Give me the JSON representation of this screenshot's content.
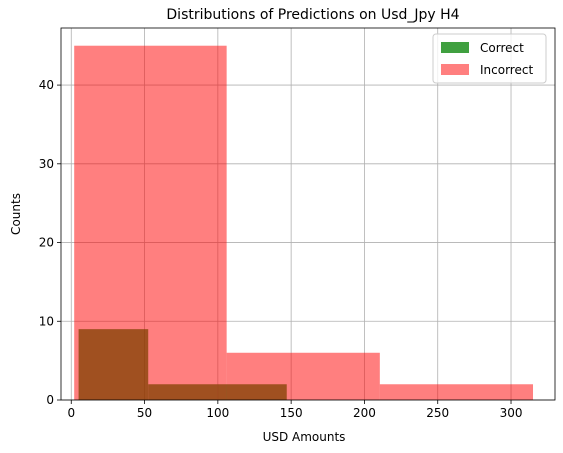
{
  "chart_data": {
    "type": "bar",
    "title": "Distributions of Predictions on Usd_Jpy H4",
    "xlabel": "USD Amounts",
    "ylabel": "Counts",
    "xlim": [
      -7,
      330
    ],
    "ylim": [
      0,
      47.25
    ],
    "xticks": [
      "0",
      "50",
      "100",
      "150",
      "200",
      "250",
      "300"
    ],
    "xtick_values": [
      0,
      50,
      100,
      150,
      200,
      250,
      300
    ],
    "yticks": [
      "0",
      "10",
      "20",
      "30",
      "40"
    ],
    "ytick_values": [
      0,
      10,
      20,
      30,
      40
    ],
    "grid": true,
    "legend_position": "top-right",
    "series": [
      {
        "name": "Correct",
        "color": "#008000",
        "opacity": 0.75,
        "bins": [
          {
            "x0": 5,
            "x1": 52.5,
            "count": 9
          },
          {
            "x0": 52.5,
            "x1": 100,
            "count": 2
          },
          {
            "x0": 100,
            "x1": 147,
            "count": 2
          }
        ]
      },
      {
        "name": "Incorrect",
        "color": "#ff0000",
        "opacity": 0.5,
        "bins": [
          {
            "x0": 2,
            "x1": 106,
            "count": 45
          },
          {
            "x0": 106,
            "x1": 210.5,
            "count": 6
          },
          {
            "x0": 210.5,
            "x1": 315,
            "count": 2
          }
        ]
      }
    ]
  }
}
